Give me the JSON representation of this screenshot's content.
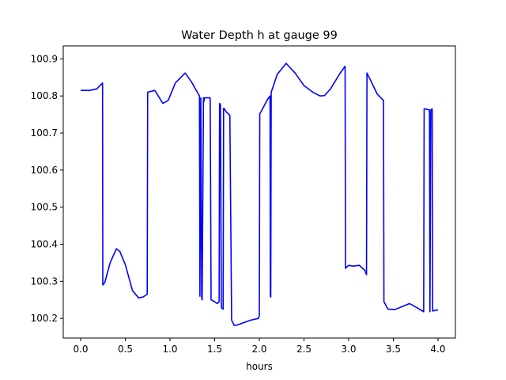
{
  "chart_data": {
    "type": "line",
    "title": "Water Depth h at gauge 99",
    "xlabel": "hours",
    "ylabel": "",
    "xlim": [
      -0.195,
      4.195
    ],
    "ylim": [
      100.147,
      100.935
    ],
    "grid": false,
    "x_ticks": [
      0.0,
      0.5,
      1.0,
      1.5,
      2.0,
      2.5,
      3.0,
      3.5,
      4.0
    ],
    "x_tick_labels": [
      "0.0",
      "0.5",
      "1.0",
      "1.5",
      "2.0",
      "2.5",
      "3.0",
      "3.5",
      "4.0"
    ],
    "y_ticks": [
      100.2,
      100.3,
      100.4,
      100.5,
      100.6,
      100.7,
      100.8,
      100.9
    ],
    "y_tick_labels": [
      "100.2",
      "100.3",
      "100.4",
      "100.5",
      "100.6",
      "100.7",
      "100.8",
      "100.9"
    ],
    "series": [
      {
        "color": "#0000ff",
        "x": [
          0.0,
          0.1,
          0.18,
          0.245,
          0.248,
          0.27,
          0.33,
          0.4,
          0.44,
          0.5,
          0.58,
          0.65,
          0.7,
          0.745,
          0.75,
          0.83,
          0.92,
          0.98,
          1.06,
          1.17,
          1.24,
          1.33,
          1.335,
          1.345,
          1.355,
          1.36,
          1.375,
          1.38,
          1.385,
          1.395,
          1.45,
          1.46,
          1.48,
          1.53,
          1.55,
          1.555,
          1.565,
          1.575,
          1.595,
          1.6,
          1.605,
          1.61,
          1.63,
          1.67,
          1.69,
          1.72,
          1.75,
          1.9,
          1.99,
          2.0,
          2.005,
          2.02,
          2.09,
          2.12,
          2.123,
          2.128,
          2.133,
          2.2,
          2.3,
          2.4,
          2.5,
          2.6,
          2.68,
          2.73,
          2.8,
          2.9,
          2.96,
          2.965,
          3.0,
          3.05,
          3.12,
          3.18,
          3.2,
          3.205,
          3.25,
          3.32,
          3.39,
          3.395,
          3.44,
          3.52,
          3.6,
          3.68,
          3.72,
          3.77,
          3.84,
          3.845,
          3.86,
          3.905,
          3.91,
          3.92,
          3.935,
          3.94,
          4.0
        ],
        "y": [
          100.815,
          100.815,
          100.819,
          100.835,
          100.29,
          100.297,
          100.35,
          100.388,
          100.38,
          100.345,
          100.275,
          100.255,
          100.258,
          100.265,
          100.81,
          100.815,
          100.78,
          100.788,
          100.835,
          100.862,
          100.838,
          100.8,
          100.26,
          100.795,
          100.255,
          100.25,
          100.795,
          100.785,
          100.795,
          100.795,
          100.795,
          100.25,
          100.248,
          100.24,
          100.245,
          100.78,
          100.776,
          100.229,
          100.225,
          100.767,
          100.766,
          100.765,
          100.757,
          100.748,
          100.195,
          100.181,
          100.182,
          100.195,
          100.2,
          100.207,
          100.752,
          100.758,
          100.79,
          100.8,
          100.26,
          100.258,
          100.81,
          100.858,
          100.888,
          100.862,
          100.828,
          100.81,
          100.8,
          100.801,
          100.82,
          100.86,
          100.88,
          100.335,
          100.343,
          100.341,
          100.343,
          100.33,
          100.318,
          100.862,
          100.84,
          100.805,
          100.788,
          100.245,
          100.225,
          100.224,
          100.232,
          100.24,
          100.235,
          100.228,
          100.218,
          100.765,
          100.765,
          100.762,
          100.218,
          100.763,
          100.765,
          100.22,
          100.223
        ]
      }
    ]
  }
}
